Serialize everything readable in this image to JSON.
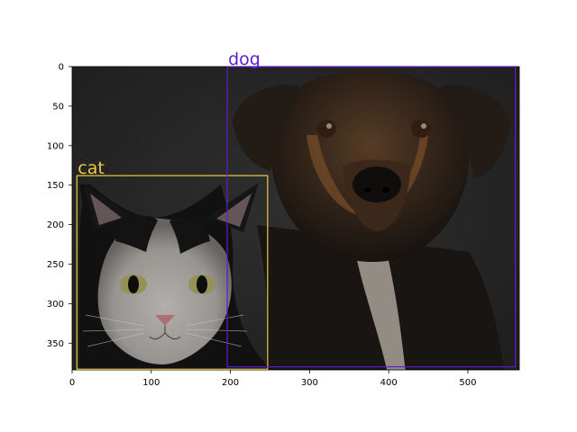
{
  "image": {
    "width": 565,
    "height": 383,
    "subject": "dark photograph of a tabby-eyed black and white cat beside a black and tan dog",
    "background_color": "#2e2e2e"
  },
  "axes": {
    "x_ticks": [
      0,
      100,
      200,
      300,
      400,
      500
    ],
    "y_ticks": [
      0,
      50,
      100,
      150,
      200,
      250,
      300,
      350
    ]
  },
  "detections": [
    {
      "label": "cat",
      "color": "#f0c94a",
      "x0": 6,
      "y0": 138,
      "x1": 247,
      "y1": 383
    },
    {
      "label": "dog",
      "color": "#5b1ccf",
      "x0": 196,
      "y0": 0,
      "x1": 560,
      "y1": 380
    }
  ]
}
